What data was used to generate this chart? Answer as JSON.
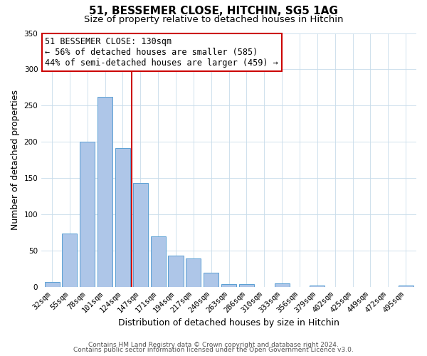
{
  "title1": "51, BESSEMER CLOSE, HITCHIN, SG5 1AG",
  "title2": "Size of property relative to detached houses in Hitchin",
  "xlabel": "Distribution of detached houses by size in Hitchin",
  "ylabel": "Number of detached properties",
  "bar_labels": [
    "32sqm",
    "55sqm",
    "78sqm",
    "101sqm",
    "124sqm",
    "147sqm",
    "171sqm",
    "194sqm",
    "217sqm",
    "240sqm",
    "263sqm",
    "286sqm",
    "310sqm",
    "333sqm",
    "356sqm",
    "379sqm",
    "402sqm",
    "425sqm",
    "449sqm",
    "472sqm",
    "495sqm"
  ],
  "bar_values": [
    7,
    74,
    200,
    262,
    191,
    143,
    70,
    43,
    39,
    20,
    4,
    4,
    0,
    5,
    0,
    2,
    0,
    0,
    0,
    0,
    2
  ],
  "bar_color": "#aec6e8",
  "bar_edge_color": "#5a9fd4",
  "ylim": [
    0,
    350
  ],
  "yticks": [
    0,
    50,
    100,
    150,
    200,
    250,
    300,
    350
  ],
  "vline_x": 4.5,
  "vline_color": "#cc0000",
  "annotation_title": "51 BESSEMER CLOSE: 130sqm",
  "annotation_line1": "← 56% of detached houses are smaller (585)",
  "annotation_line2": "44% of semi-detached houses are larger (459) →",
  "annotation_box_color": "#ffffff",
  "annotation_box_edge": "#cc0000",
  "footer1": "Contains HM Land Registry data © Crown copyright and database right 2024.",
  "footer2": "Contains public sector information licensed under the Open Government Licence v3.0.",
  "title1_fontsize": 11,
  "title2_fontsize": 9.5,
  "xlabel_fontsize": 9,
  "ylabel_fontsize": 9,
  "tick_fontsize": 7.5,
  "annotation_fontsize": 8.5,
  "footer_fontsize": 6.5
}
